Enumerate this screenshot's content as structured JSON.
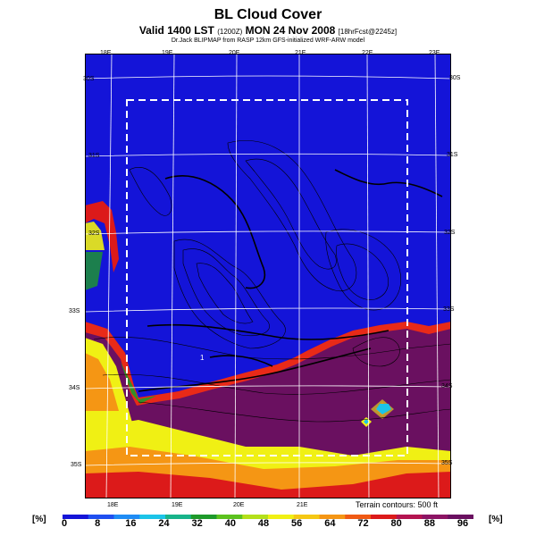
{
  "header": {
    "title": "BL Cloud Cover",
    "subtitle_main": "Valid 1400 LST",
    "subtitle_small1": "(1200Z)",
    "subtitle_date": "MON 24 Nov 2008",
    "subtitle_small2": "[18hrFcst@2245z]",
    "credit": "Dr.Jack BLIPMAP from RASP 12km GFS-initialized WRF-ARW model"
  },
  "map": {
    "lon_top": [
      "18E",
      "19E",
      "20E",
      "21E",
      "22E",
      "23E"
    ],
    "lon_bottom": [
      "18E",
      "19E",
      "20E",
      "21E"
    ],
    "lat_left": [
      "30S",
      "31S",
      "32S",
      "33S",
      "34S",
      "35S"
    ],
    "lat_right": [
      "30S",
      "31S",
      "32S",
      "33S",
      "34S",
      "35S"
    ],
    "point_label": "1",
    "terrain_note": "Terrain contours: 500 ft"
  },
  "colorbar": {
    "unit_left": "[%]",
    "unit_right": "[%]",
    "ticks": [
      "0",
      "8",
      "16",
      "24",
      "32",
      "40",
      "48",
      "56",
      "64",
      "72",
      "80",
      "88",
      "96"
    ],
    "colors": [
      "#1414d8",
      "#1f4ff0",
      "#1f8cf5",
      "#1cc4e8",
      "#18b48a",
      "#1e9a2a",
      "#5cc21e",
      "#b4e01a",
      "#f0f014",
      "#f5c814",
      "#f59614",
      "#f05a14",
      "#dc1a1a",
      "#b41450",
      "#8c1464",
      "#6a1060"
    ]
  }
}
